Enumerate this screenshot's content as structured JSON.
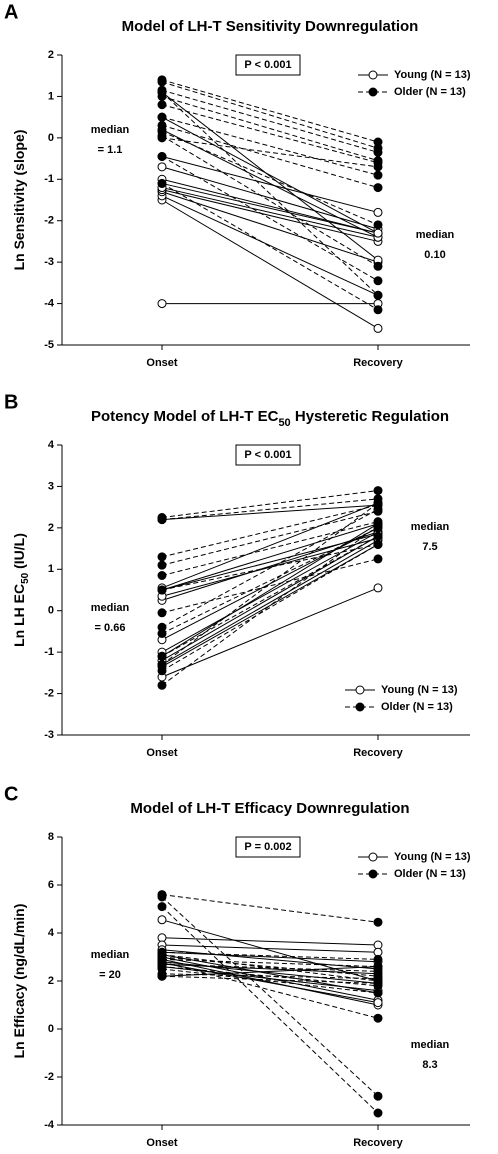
{
  "chart_data": [
    {
      "type": "paired-line",
      "panel_label": "A",
      "title": [
        {
          "text": "Model of LH-T Sensitivity Downregulation"
        }
      ],
      "ylabel": [
        {
          "text": "Ln Sensitivity (slope)"
        }
      ],
      "categories": [
        "Onset",
        "Recovery"
      ],
      "ylim": [
        -5,
        2
      ],
      "yticks": [
        -5,
        -4,
        -3,
        -2,
        -1,
        0,
        1,
        2
      ],
      "p_value": "P < 0.001",
      "legend_position": "upper right",
      "annotations": [
        {
          "lines": [
            "median",
            "= 1.1"
          ]
        },
        {
          "lines": [
            "median",
            "0.10"
          ]
        }
      ],
      "series": [
        {
          "name": "Young (N = 13)",
          "color": "#000000",
          "fill": "#ffffff",
          "dash": "solid",
          "values": [
            [
              -4.0,
              -4.0
            ],
            [
              -1.5,
              -4.6
            ],
            [
              -1.4,
              -3.8
            ],
            [
              -1.3,
              -3.0
            ],
            [
              -1.25,
              -2.5
            ],
            [
              -1.2,
              -2.4
            ],
            [
              -1.1,
              -2.3
            ],
            [
              -1.0,
              -2.3
            ],
            [
              -0.7,
              -2.2
            ],
            [
              -0.45,
              -1.8
            ],
            [
              0.2,
              -2.4
            ],
            [
              0.5,
              -2.3
            ],
            [
              1.1,
              -2.95
            ]
          ]
        },
        {
          "name": "Older (N = 13)",
          "color": "#000000",
          "fill": "#000000",
          "dash": "dashed",
          "values": [
            [
              1.4,
              -0.1
            ],
            [
              1.35,
              -0.25
            ],
            [
              1.15,
              -0.35
            ],
            [
              1.0,
              -0.55
            ],
            [
              0.8,
              -0.6
            ],
            [
              0.5,
              -0.9
            ],
            [
              0.3,
              -1.2
            ],
            [
              0.15,
              -2.1
            ],
            [
              0.05,
              -3.1
            ],
            [
              -0.45,
              -3.45
            ],
            [
              -1.1,
              -4.15
            ],
            [
              1.1,
              -3.8
            ],
            [
              0.0,
              -0.7
            ]
          ]
        }
      ]
    },
    {
      "type": "paired-line",
      "panel_label": "B",
      "title": [
        {
          "text": "Potency Model of LH-T EC"
        },
        {
          "text": "50",
          "subscript": true
        },
        {
          "text": " Hysteretic Regulation"
        }
      ],
      "ylabel": [
        {
          "text": "Ln LH EC"
        },
        {
          "text": "50",
          "subscript": true
        },
        {
          "text": " (IU/L)"
        }
      ],
      "categories": [
        "Onset",
        "Recovery"
      ],
      "ylim": [
        -3,
        4
      ],
      "yticks": [
        -3,
        -2,
        -1,
        0,
        1,
        2,
        3,
        4
      ],
      "p_value": "P < 0.001",
      "legend_position": "lower right",
      "annotations": [
        {
          "lines": [
            "median",
            "= 0.66"
          ]
        },
        {
          "lines": [
            "median",
            "7.5"
          ]
        }
      ],
      "series": [
        {
          "name": "Young (N = 13)",
          "color": "#000000",
          "fill": "#ffffff",
          "dash": "solid",
          "values": [
            [
              -1.6,
              0.55
            ],
            [
              -1.35,
              1.6
            ],
            [
              -1.3,
              1.7
            ],
            [
              -1.2,
              1.8
            ],
            [
              -1.0,
              1.9
            ],
            [
              -0.7,
              2.0
            ],
            [
              0.25,
              1.9
            ],
            [
              0.35,
              1.75
            ],
            [
              0.5,
              2.1
            ],
            [
              0.55,
              2.6
            ],
            [
              2.2,
              2.55
            ],
            [
              -1.1,
              2.1
            ],
            [
              0.5,
              1.85
            ]
          ]
        },
        {
          "name": "Older (N = 13)",
          "color": "#000000",
          "fill": "#000000",
          "dash": "dashed",
          "values": [
            [
              2.25,
              2.9
            ],
            [
              2.2,
              2.7
            ],
            [
              1.3,
              2.55
            ],
            [
              1.1,
              2.4
            ],
            [
              0.85,
              2.15
            ],
            [
              0.5,
              1.6
            ],
            [
              -0.05,
              1.25
            ],
            [
              -0.4,
              2.45
            ],
            [
              -0.55,
              2.0
            ],
            [
              -1.1,
              1.8
            ],
            [
              -1.3,
              2.6
            ],
            [
              -1.45,
              1.6
            ],
            [
              -1.8,
              2.05
            ]
          ]
        }
      ]
    },
    {
      "type": "paired-line",
      "panel_label": "C",
      "title": [
        {
          "text": "Model of LH-T Efficacy Downregulation"
        }
      ],
      "ylabel": [
        {
          "text": "Ln Efficacy (ng/dL/min)"
        }
      ],
      "categories": [
        "Onset",
        "Recovery"
      ],
      "ylim": [
        -4,
        8
      ],
      "yticks": [
        -4,
        -2,
        0,
        2,
        4,
        6,
        8
      ],
      "p_value": "P = 0.002",
      "legend_position": "upper right",
      "annotations": [
        {
          "lines": [
            "median",
            "= 20"
          ]
        },
        {
          "lines": [
            "median",
            "8.3"
          ]
        }
      ],
      "series": [
        {
          "name": "Young (N = 13)",
          "color": "#000000",
          "fill": "#ffffff",
          "dash": "solid",
          "values": [
            [
              4.55,
              2.0
            ],
            [
              3.8,
              3.5
            ],
            [
              3.5,
              3.2
            ],
            [
              3.3,
              2.5
            ],
            [
              3.1,
              1.5
            ],
            [
              3.0,
              1.2
            ],
            [
              2.9,
              1.0
            ],
            [
              2.8,
              1.9
            ],
            [
              2.7,
              2.3
            ],
            [
              2.6,
              1.6
            ],
            [
              3.2,
              2.8
            ],
            [
              2.75,
              1.1
            ],
            [
              2.2,
              2.6
            ]
          ]
        },
        {
          "name": "Older (N = 13)",
          "color": "#000000",
          "fill": "#000000",
          "dash": "dashed",
          "values": [
            [
              5.6,
              4.45
            ],
            [
              5.5,
              -2.8
            ],
            [
              5.1,
              -3.5
            ],
            [
              3.2,
              2.9
            ],
            [
              3.0,
              2.2
            ],
            [
              2.8,
              0.45
            ],
            [
              2.7,
              2.4
            ],
            [
              2.5,
              1.5
            ],
            [
              2.3,
              2.1
            ],
            [
              2.2,
              1.9
            ],
            [
              2.9,
              2.6
            ],
            [
              3.1,
              2.0
            ],
            [
              2.6,
              1.8
            ]
          ]
        }
      ]
    }
  ]
}
